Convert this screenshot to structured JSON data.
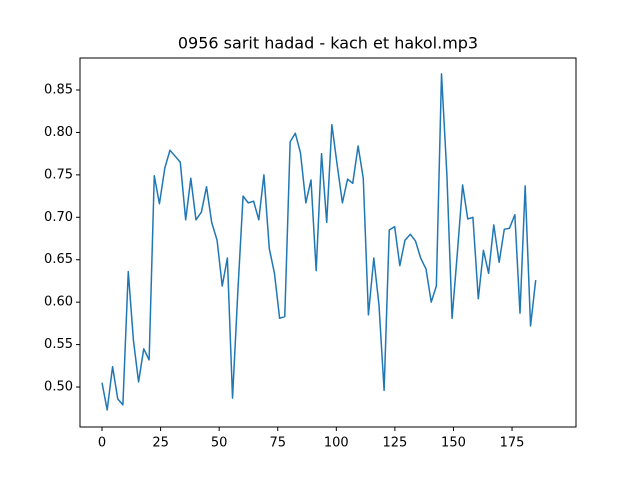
{
  "chart_data": {
    "type": "line",
    "title": "0956 sarit hadad - kach et hakol.mp3",
    "x": [
      0,
      2.2,
      4.5,
      6.7,
      8.9,
      11.2,
      13.4,
      15.6,
      17.8,
      20.1,
      22.3,
      24.5,
      26.8,
      29.0,
      31.2,
      33.4,
      35.7,
      37.9,
      40.1,
      42.4,
      44.6,
      46.8,
      49.1,
      51.3,
      53.5,
      55.7,
      58.0,
      60.2,
      62.4,
      64.7,
      66.9,
      69.1,
      71.4,
      73.6,
      75.8,
      78.0,
      80.3,
      82.5,
      84.7,
      87.0,
      89.2,
      91.4,
      93.7,
      95.9,
      98.1,
      100.3,
      102.6,
      104.8,
      107.0,
      109.3,
      111.5,
      113.7,
      116.0,
      118.2,
      120.4,
      122.6,
      124.9,
      127.1,
      129.3,
      131.6,
      133.8,
      136.0,
      138.3,
      140.5,
      142.7,
      144.9,
      147.2,
      149.4,
      151.6,
      153.9,
      156.1,
      158.3,
      160.6,
      162.8,
      165.0,
      167.2,
      169.5,
      171.7,
      173.9,
      176.2,
      178.4,
      180.6,
      182.9,
      185.1
    ],
    "series": [
      {
        "color": "#1f77b4",
        "values": [
          0.505,
          0.473,
          0.524,
          0.486,
          0.479,
          0.636,
          0.555,
          0.506,
          0.545,
          0.532,
          0.749,
          0.716,
          0.758,
          0.779,
          0.772,
          0.765,
          0.697,
          0.746,
          0.697,
          0.706,
          0.736,
          0.694,
          0.673,
          0.619,
          0.652,
          0.487,
          0.614,
          0.725,
          0.717,
          0.719,
          0.697,
          0.75,
          0.663,
          0.634,
          0.581,
          0.583,
          0.789,
          0.799,
          0.776,
          0.717,
          0.744,
          0.637,
          0.775,
          0.694,
          0.809,
          0.763,
          0.717,
          0.745,
          0.74,
          0.784,
          0.746,
          0.585,
          0.652,
          0.597,
          0.496,
          0.685,
          0.689,
          0.643,
          0.673,
          0.68,
          0.672,
          0.652,
          0.639,
          0.6,
          0.619,
          0.869,
          0.75,
          0.581,
          0.656,
          0.738,
          0.698,
          0.7,
          0.604,
          0.661,
          0.634,
          0.691,
          0.647,
          0.686,
          0.687,
          0.703,
          0.587,
          0.737,
          0.572,
          0.626
        ]
      }
    ],
    "xlim": [
      -9.4,
      202.3
    ],
    "ylim": [
      0.4529,
      0.8877
    ],
    "xticks": [
      0,
      25,
      50,
      75,
      100,
      125,
      150,
      175
    ],
    "yticks": [
      {
        "value": 0.5,
        "label": "0.50"
      },
      0.55,
      {
        "value": 0.6,
        "label": "0.60"
      },
      0.65,
      {
        "value": 0.7,
        "label": "0.70"
      },
      0.75,
      {
        "value": 0.8,
        "label": "0.80"
      },
      0.85
    ]
  }
}
